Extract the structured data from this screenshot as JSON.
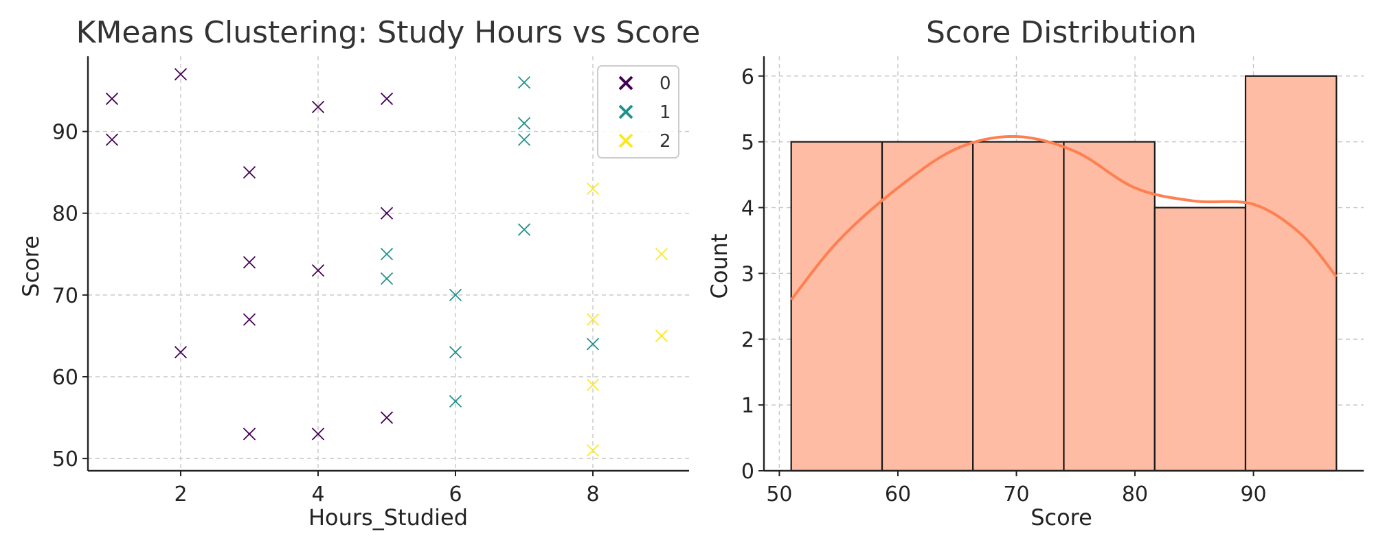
{
  "colors": {
    "cluster_0": "#440154",
    "cluster_1": "#21918c",
    "cluster_2": "#fde725",
    "hist_fill": "#fdbca3",
    "hist_edge": "#1a1a1a",
    "kde_line": "#ff7f50"
  },
  "chart_data": [
    {
      "type": "scatter",
      "title": "KMeans Clustering: Study Hours vs Score",
      "xlabel": "Hours_Studied",
      "ylabel": "Score",
      "xlim": [
        0.65,
        9.4
      ],
      "ylim": [
        48.5,
        99.2
      ],
      "xticks": [
        2,
        4,
        6,
        8
      ],
      "yticks": [
        50,
        60,
        70,
        80,
        90
      ],
      "grid": true,
      "legend": {
        "placement": "top-right",
        "entries": [
          "0",
          "1",
          "2"
        ]
      },
      "marker": "x",
      "series": [
        {
          "name": "0",
          "x": [
            1,
            1,
            2,
            2,
            3,
            3,
            3,
            3,
            4,
            4,
            4,
            5,
            5,
            5
          ],
          "y": [
            94,
            89,
            97,
            63,
            85,
            74,
            67,
            53,
            93,
            73,
            53,
            94,
            80,
            55
          ]
        },
        {
          "name": "1",
          "x": [
            5,
            5,
            6,
            6,
            6,
            7,
            7,
            7,
            7,
            8
          ],
          "y": [
            75,
            72,
            70,
            63,
            57,
            96,
            91,
            89,
            78,
            64
          ]
        },
        {
          "name": "2",
          "x": [
            8,
            8,
            8,
            8,
            9,
            9
          ],
          "y": [
            83,
            67,
            59,
            51,
            75,
            65
          ]
        }
      ]
    },
    {
      "type": "bar",
      "subtype": "histogram",
      "title": "Score Distribution",
      "xlabel": "Score",
      "ylabel": "Count",
      "xlim": [
        48.7,
        99.3
      ],
      "ylim": [
        0,
        6.3
      ],
      "xticks": [
        50,
        60,
        70,
        80,
        90
      ],
      "yticks": [
        0,
        1,
        2,
        3,
        4,
        5,
        6
      ],
      "grid": true,
      "bins": [
        {
          "start": 51.0,
          "end": 58.67,
          "count": 5
        },
        {
          "start": 58.67,
          "end": 66.33,
          "count": 5
        },
        {
          "start": 66.33,
          "end": 74.0,
          "count": 5
        },
        {
          "start": 74.0,
          "end": 81.67,
          "count": 5
        },
        {
          "start": 81.67,
          "end": 89.33,
          "count": 4
        },
        {
          "start": 89.33,
          "end": 97.0,
          "count": 6
        }
      ],
      "kde": {
        "x": [
          51,
          55,
          60,
          65,
          70,
          75,
          80,
          85,
          90,
          94,
          97
        ],
        "y": [
          2.6,
          3.5,
          4.3,
          4.9,
          5.08,
          4.85,
          4.3,
          4.1,
          4.05,
          3.6,
          2.95
        ]
      }
    }
  ]
}
